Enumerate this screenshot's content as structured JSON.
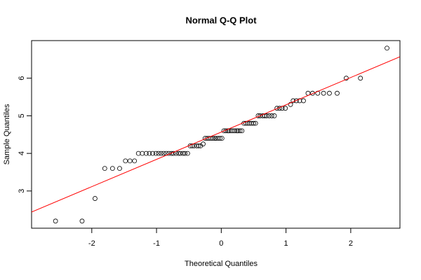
{
  "chart_data": {
    "type": "scatter",
    "title": "Normal Q-Q Plot",
    "x_label": "Theoretical Quantiles",
    "y_label": "Sample Quantiles",
    "xlim": [
      -2.93,
      2.76
    ],
    "ylim": [
      2.01,
      7.0
    ],
    "xticks": [
      -2,
      -1,
      0,
      1,
      2
    ],
    "yticks": [
      3,
      4,
      5,
      6
    ],
    "series": [
      {
        "color": "#000000",
        "x": [
          -2.56,
          -2.15,
          -1.95,
          -1.8,
          -1.68,
          -1.57,
          -1.48,
          -1.41,
          -1.34,
          -1.28,
          -1.22,
          -1.16,
          -1.11,
          -1.06,
          -1.01,
          -0.97,
          -0.93,
          -0.89,
          -0.85,
          -0.81,
          -0.77,
          -0.74,
          -0.7,
          -0.66,
          -0.63,
          -0.59,
          -0.56,
          -0.52,
          -0.48,
          -0.45,
          -0.42,
          -0.38,
          -0.35,
          -0.32,
          -0.28,
          -0.25,
          -0.22,
          -0.19,
          -0.16,
          -0.13,
          -0.1,
          -0.08,
          -0.05,
          -0.02,
          0.01,
          0.04,
          0.07,
          0.1,
          0.12,
          0.15,
          0.18,
          0.21,
          0.24,
          0.26,
          0.29,
          0.32,
          0.35,
          0.38,
          0.41,
          0.44,
          0.47,
          0.5,
          0.53,
          0.57,
          0.6,
          0.64,
          0.67,
          0.7,
          0.74,
          0.78,
          0.82,
          0.86,
          0.9,
          0.94,
          0.99,
          1.07,
          1.11,
          1.16,
          1.21,
          1.27,
          1.34,
          1.41,
          1.49,
          1.58,
          1.67,
          1.79,
          1.93,
          2.15,
          2.56
        ],
        "values": [
          2.2,
          2.2,
          2.8,
          3.6,
          3.6,
          3.6,
          3.8,
          3.8,
          3.8,
          4,
          4,
          4,
          4,
          4,
          4,
          4,
          4,
          4,
          4,
          4,
          4,
          4,
          4,
          4,
          4,
          4,
          4,
          4,
          4.2,
          4.2,
          4.2,
          4.2,
          4.2,
          4.2,
          4.25,
          4.4,
          4.4,
          4.4,
          4.4,
          4.4,
          4.4,
          4.4,
          4.4,
          4.4,
          4.4,
          4.6,
          4.6,
          4.6,
          4.6,
          4.6,
          4.6,
          4.6,
          4.6,
          4.6,
          4.6,
          4.6,
          4.8,
          4.8,
          4.8,
          4.8,
          4.8,
          4.8,
          4.8,
          5,
          5,
          5,
          5,
          5,
          5,
          5,
          5,
          5.2,
          5.2,
          5.2,
          5.2,
          5.3,
          5.4,
          5.4,
          5.4,
          5.4,
          5.6,
          5.6,
          5.6,
          5.6,
          5.6,
          5.6,
          6,
          6,
          6.8
        ]
      }
    ],
    "reference_line": {
      "color": "#ff0000",
      "x": [
        -2.93,
        2.76
      ],
      "values": [
        2.44,
        6.57
      ]
    }
  }
}
